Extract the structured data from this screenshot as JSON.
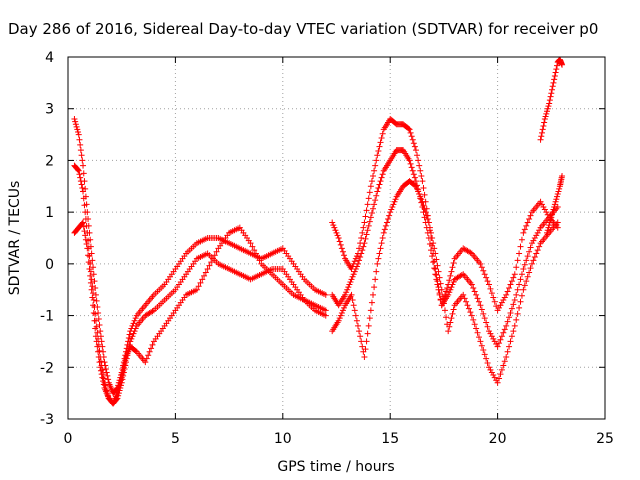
{
  "chart_data": {
    "type": "scatter",
    "title": "Day 286 of 2016, Sidereal Day-to-day VTEC variation (SDTVAR) for receiver p0",
    "xlabel": "GPS time / hours",
    "ylabel": "SDTVAR / TECUs",
    "xlim": [
      0,
      25
    ],
    "ylim": [
      -3,
      4
    ],
    "xticks": [
      0,
      5,
      10,
      15,
      20,
      25
    ],
    "yticks": [
      -3,
      -2,
      -1,
      0,
      1,
      2,
      3,
      4
    ],
    "grid": true,
    "legend": "none",
    "marker": "+",
    "color": "#ff0000",
    "series": [
      {
        "x": [
          0.3,
          0.5,
          0.7,
          0.9,
          1.1,
          1.3,
          1.5,
          1.7,
          1.9,
          2.1,
          2.3,
          2.5,
          2.7,
          2.9,
          3.2,
          3.6,
          4.0,
          4.5,
          5.0,
          5.5,
          6.0,
          6.5,
          7.0,
          7.5,
          8.0,
          8.5,
          9.0,
          9.5,
          10.0,
          10.5,
          11.0,
          11.5,
          12.0
        ],
        "y": [
          2.8,
          2.5,
          1.9,
          1.0,
          0.2,
          -0.6,
          -1.3,
          -1.9,
          -2.3,
          -2.5,
          -2.4,
          -2.1,
          -1.7,
          -1.3,
          -1.0,
          -0.8,
          -0.6,
          -0.4,
          -0.1,
          0.2,
          0.4,
          0.5,
          0.5,
          0.4,
          0.3,
          0.2,
          0.1,
          0.2,
          0.3,
          0.0,
          -0.3,
          -0.5,
          -0.6
        ]
      },
      {
        "x": [
          0.3,
          0.5,
          0.7,
          0.9,
          1.1,
          1.3,
          1.5,
          1.7,
          1.9,
          2.1,
          2.3,
          2.5,
          2.7,
          2.9,
          3.2,
          3.6,
          4.0,
          4.5,
          5.0,
          5.5,
          6.0,
          6.5,
          7.0,
          7.5,
          8.0,
          8.5,
          9.0,
          9.5,
          10.0,
          10.5,
          11.0,
          11.5,
          12.0
        ],
        "y": [
          1.9,
          1.8,
          1.4,
          0.6,
          -0.3,
          -1.1,
          -1.8,
          -2.3,
          -2.6,
          -2.7,
          -2.6,
          -2.3,
          -1.9,
          -1.5,
          -1.2,
          -1.0,
          -0.9,
          -0.7,
          -0.5,
          -0.2,
          0.1,
          0.2,
          0.0,
          -0.1,
          -0.2,
          -0.3,
          -0.2,
          -0.1,
          -0.1,
          -0.4,
          -0.7,
          -0.9,
          -1.0
        ]
      },
      {
        "x": [
          0.3,
          0.5,
          0.7,
          0.9,
          1.1,
          1.3,
          1.5,
          1.7,
          1.9,
          2.1,
          2.3,
          2.5,
          2.7,
          2.9,
          3.2,
          3.6,
          4.0,
          4.5,
          5.0,
          5.5,
          6.0,
          6.5,
          7.0,
          7.5,
          8.0,
          8.5,
          9.0,
          9.5,
          10.0,
          10.5,
          11.0,
          11.5,
          12.0
        ],
        "y": [
          0.6,
          0.7,
          0.8,
          0.3,
          -0.5,
          -1.4,
          -2.0,
          -2.4,
          -2.6,
          -2.7,
          -2.5,
          -2.2,
          -1.8,
          -1.6,
          -1.7,
          -1.9,
          -1.5,
          -1.2,
          -0.9,
          -0.6,
          -0.5,
          -0.1,
          0.3,
          0.6,
          0.7,
          0.4,
          0.0,
          -0.2,
          -0.4,
          -0.6,
          -0.7,
          -0.8,
          -0.9
        ]
      },
      {
        "x": [
          12.3,
          12.6,
          12.9,
          13.2,
          13.5,
          13.8,
          14.1,
          14.4,
          14.7,
          15.0,
          15.3,
          15.6,
          15.9,
          16.2,
          16.5,
          16.8,
          17.1,
          17.4,
          17.7,
          18.0,
          18.4,
          18.8,
          19.2,
          19.6,
          20.0,
          20.4,
          20.8,
          21.2,
          21.6,
          22.0,
          22.4,
          22.8
        ],
        "y": [
          0.8,
          0.5,
          0.1,
          -0.1,
          0.2,
          0.8,
          1.5,
          2.1,
          2.6,
          2.8,
          2.7,
          2.7,
          2.6,
          2.2,
          1.6,
          0.8,
          -0.1,
          -0.8,
          -0.4,
          0.1,
          0.3,
          0.2,
          0.0,
          -0.4,
          -0.9,
          -0.6,
          -0.2,
          0.6,
          1.0,
          1.2,
          0.9,
          0.7
        ]
      },
      {
        "x": [
          12.3,
          12.6,
          12.9,
          13.2,
          13.5,
          13.8,
          14.1,
          14.4,
          14.7,
          15.0,
          15.3,
          15.6,
          15.9,
          16.2,
          16.5,
          16.8,
          17.1,
          17.4,
          17.7,
          18.0,
          18.4,
          18.8,
          19.2,
          19.6,
          20.0,
          20.4,
          20.8,
          21.2,
          21.6,
          22.0,
          22.4,
          22.8
        ],
        "y": [
          -0.6,
          -0.8,
          -0.6,
          -0.3,
          0.0,
          0.4,
          0.9,
          1.4,
          1.8,
          2.0,
          2.2,
          2.2,
          2.0,
          1.6,
          1.1,
          0.5,
          -0.2,
          -0.8,
          -0.6,
          -0.3,
          -0.2,
          -0.4,
          -0.8,
          -1.3,
          -1.6,
          -1.2,
          -0.7,
          -0.1,
          0.4,
          0.7,
          0.9,
          1.1
        ]
      },
      {
        "x": [
          12.3,
          12.6,
          12.9,
          13.2,
          13.5,
          13.8,
          14.1,
          14.4,
          14.7,
          15.0,
          15.3,
          15.6,
          15.9,
          16.2,
          16.5,
          16.8,
          17.1,
          17.4,
          17.7,
          18.0,
          18.4,
          18.8,
          19.2,
          19.6,
          20.0,
          20.4,
          20.8,
          21.2,
          21.6,
          22.0,
          22.4,
          22.8
        ],
        "y": [
          -1.3,
          -1.1,
          -0.8,
          -0.6,
          -1.2,
          -1.8,
          -0.9,
          0.0,
          0.6,
          1.0,
          1.3,
          1.5,
          1.6,
          1.5,
          1.2,
          0.8,
          0.2,
          -0.5,
          -1.3,
          -0.8,
          -0.6,
          -1.0,
          -1.5,
          -2.0,
          -2.3,
          -1.8,
          -1.2,
          -0.5,
          0.0,
          0.4,
          0.6,
          0.8
        ]
      },
      {
        "x": [
          22.0,
          22.2,
          22.4,
          22.6,
          22.8,
          22.9,
          23.0
        ],
        "y": [
          2.4,
          2.8,
          3.1,
          3.5,
          3.9,
          3.95,
          3.85
        ]
      },
      {
        "x": [
          22.3,
          22.5,
          22.7,
          22.9,
          23.0
        ],
        "y": [
          0.6,
          0.9,
          1.2,
          1.5,
          1.7
        ]
      }
    ]
  }
}
